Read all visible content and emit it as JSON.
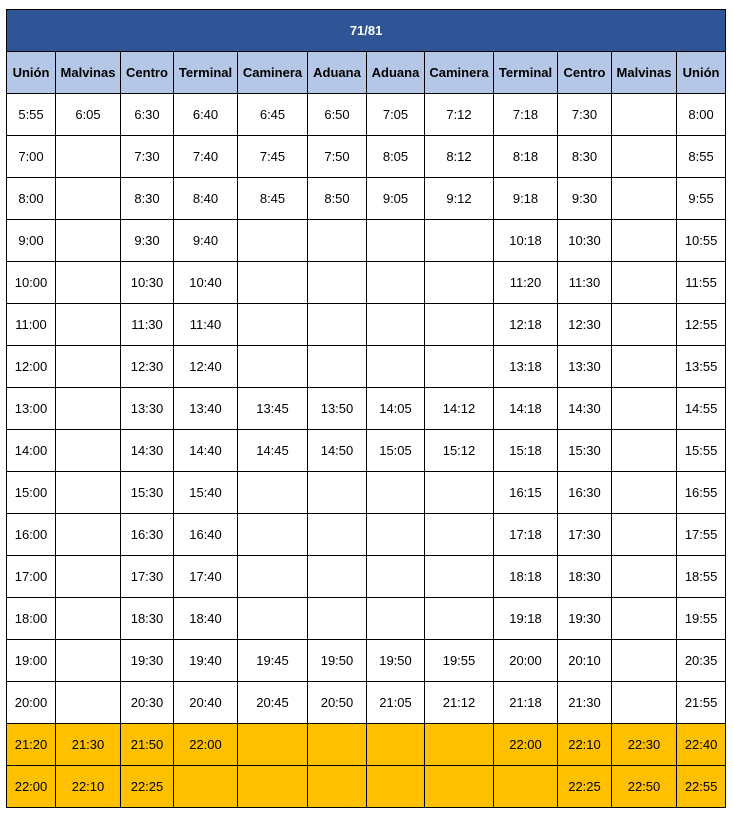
{
  "title": "71/81",
  "colors": {
    "title_bg": "#2f5597",
    "header_bg": "#b4c7e7",
    "highlight": "#ffc000"
  },
  "columns": [
    "Unión",
    "Malvinas",
    "Centro",
    "Terminal",
    "Caminera",
    "Aduana",
    "Aduana",
    "Caminera",
    "Terminal",
    "Centro",
    "Malvinas",
    "Unión"
  ],
  "rows": [
    {
      "highlight": false,
      "cells": [
        "5:55",
        "6:05",
        "6:30",
        "6:40",
        "6:45",
        "6:50",
        "7:05",
        "7:12",
        "7:18",
        "7:30",
        "",
        "8:00"
      ]
    },
    {
      "highlight": false,
      "cells": [
        "7:00",
        "",
        "7:30",
        "7:40",
        "7:45",
        "7:50",
        "8:05",
        "8:12",
        "8:18",
        "8:30",
        "",
        "8:55"
      ]
    },
    {
      "highlight": false,
      "cells": [
        "8:00",
        "",
        "8:30",
        "8:40",
        "8:45",
        "8:50",
        "9:05",
        "9:12",
        "9:18",
        "9:30",
        "",
        "9:55"
      ]
    },
    {
      "highlight": false,
      "cells": [
        "9:00",
        "",
        "9:30",
        "9:40",
        "",
        "",
        "",
        "",
        "10:18",
        "10:30",
        "",
        "10:55"
      ]
    },
    {
      "highlight": false,
      "cells": [
        "10:00",
        "",
        "10:30",
        "10:40",
        "",
        "",
        "",
        "",
        "11:20",
        "11:30",
        "",
        "11:55"
      ]
    },
    {
      "highlight": false,
      "cells": [
        "11:00",
        "",
        "11:30",
        "11:40",
        "",
        "",
        "",
        "",
        "12:18",
        "12:30",
        "",
        "12:55"
      ]
    },
    {
      "highlight": false,
      "cells": [
        "12:00",
        "",
        "12:30",
        "12:40",
        "",
        "",
        "",
        "",
        "13:18",
        "13:30",
        "",
        "13:55"
      ]
    },
    {
      "highlight": false,
      "cells": [
        "13:00",
        "",
        "13:30",
        "13:40",
        "13:45",
        "13:50",
        "14:05",
        "14:12",
        "14:18",
        "14:30",
        "",
        "14:55"
      ]
    },
    {
      "highlight": false,
      "cells": [
        "14:00",
        "",
        "14:30",
        "14:40",
        "14:45",
        "14:50",
        "15:05",
        "15:12",
        "15:18",
        "15:30",
        "",
        "15:55"
      ]
    },
    {
      "highlight": false,
      "cells": [
        "15:00",
        "",
        "15:30",
        "15:40",
        "",
        "",
        "",
        "",
        "16:15",
        "16:30",
        "",
        "16:55"
      ]
    },
    {
      "highlight": false,
      "cells": [
        "16:00",
        "",
        "16:30",
        "16:40",
        "",
        "",
        "",
        "",
        "17:18",
        "17:30",
        "",
        "17:55"
      ]
    },
    {
      "highlight": false,
      "cells": [
        "17:00",
        "",
        "17:30",
        "17:40",
        "",
        "",
        "",
        "",
        "18:18",
        "18:30",
        "",
        "18:55"
      ]
    },
    {
      "highlight": false,
      "cells": [
        "18:00",
        "",
        "18:30",
        "18:40",
        "",
        "",
        "",
        "",
        "19:18",
        "19:30",
        "",
        "19:55"
      ]
    },
    {
      "highlight": false,
      "cells": [
        "19:00",
        "",
        "19:30",
        "19:40",
        "19:45",
        "19:50",
        "19:50",
        "19:55",
        "20:00",
        "20:10",
        "",
        "20:35"
      ]
    },
    {
      "highlight": false,
      "cells": [
        "20:00",
        "",
        "20:30",
        "20:40",
        "20:45",
        "20:50",
        "21:05",
        "21:12",
        "21:18",
        "21:30",
        "",
        "21:55"
      ]
    },
    {
      "highlight": true,
      "cells": [
        "21:20",
        "21:30",
        "21:50",
        "22:00",
        "",
        "",
        "",
        "",
        "22:00",
        "22:10",
        "22:30",
        "22:40"
      ]
    },
    {
      "highlight": true,
      "cells": [
        "22:00",
        "22:10",
        "22:25",
        "",
        "",
        "",
        "",
        "",
        "",
        "22:25",
        "22:50",
        "22:55"
      ]
    }
  ]
}
